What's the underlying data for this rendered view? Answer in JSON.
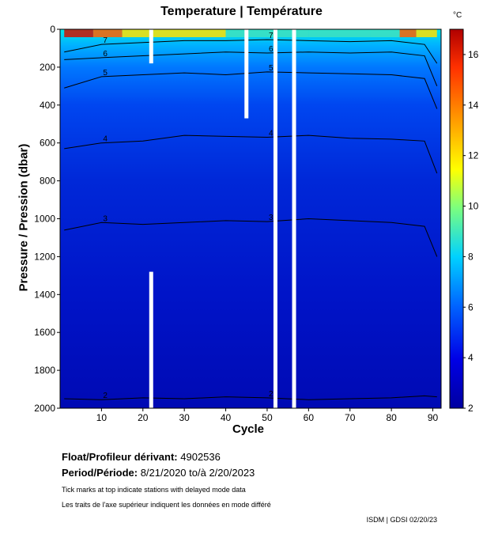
{
  "header": {
    "title": "Temperature | Température",
    "unit": "°C"
  },
  "chart_data": {
    "type": "heatmap",
    "title": "Temperature | Température",
    "xlabel": "Cycle",
    "ylabel": "Pressure / Pression (dbar)",
    "xlim": [
      0,
      92
    ],
    "ylim": [
      2000,
      0
    ],
    "x_ticks": [
      10,
      20,
      30,
      40,
      50,
      60,
      70,
      80,
      90
    ],
    "y_ticks": [
      0,
      200,
      400,
      600,
      800,
      1000,
      1200,
      1400,
      1600,
      1800,
      2000
    ],
    "colorbar": {
      "label": "°C",
      "range": [
        2,
        17
      ],
      "ticks": [
        2,
        4,
        6,
        8,
        10,
        12,
        14,
        16
      ]
    },
    "contours": [
      {
        "level": 2,
        "label": "2",
        "pressure": [
          1950,
          1955,
          1945,
          1950,
          1940,
          1945,
          1955,
          1950,
          1945,
          1935,
          1940
        ],
        "cycles": [
          1,
          10,
          20,
          30,
          40,
          50,
          60,
          70,
          80,
          88,
          91
        ]
      },
      {
        "level": 3,
        "label": "3",
        "pressure": [
          1060,
          1020,
          1030,
          1020,
          1010,
          1015,
          1000,
          1010,
          1020,
          1040,
          1200
        ],
        "cycles": [
          1,
          10,
          20,
          30,
          40,
          50,
          60,
          70,
          80,
          88,
          91
        ]
      },
      {
        "level": 4,
        "label": "4",
        "pressure": [
          630,
          600,
          590,
          560,
          565,
          570,
          560,
          575,
          580,
          590,
          760
        ],
        "cycles": [
          1,
          10,
          20,
          30,
          40,
          50,
          60,
          70,
          80,
          88,
          91
        ]
      },
      {
        "level": 5,
        "label": "5",
        "pressure": [
          310,
          250,
          240,
          230,
          240,
          225,
          230,
          235,
          240,
          260,
          420
        ],
        "cycles": [
          1,
          10,
          20,
          30,
          40,
          50,
          60,
          70,
          80,
          88,
          91
        ]
      },
      {
        "level": 6,
        "label": "6",
        "pressure": [
          160,
          150,
          140,
          130,
          120,
          125,
          120,
          125,
          120,
          140,
          300
        ],
        "cycles": [
          1,
          10,
          20,
          30,
          40,
          50,
          60,
          70,
          80,
          88,
          91
        ]
      },
      {
        "level": 7,
        "label": "7",
        "pressure": [
          120,
          80,
          70,
          60,
          60,
          55,
          60,
          65,
          60,
          80,
          180
        ],
        "cycles": [
          1,
          10,
          20,
          30,
          40,
          50,
          60,
          70,
          80,
          88,
          91
        ]
      }
    ],
    "gaps": [
      {
        "cycle": 22,
        "from_pressure": 0,
        "to_pressure": 180
      },
      {
        "cycle": 22,
        "from_pressure": 1280,
        "to_pressure": 2000
      },
      {
        "cycle": 45,
        "from_pressure": 0,
        "to_pressure": 470
      },
      {
        "cycle": 52,
        "from_pressure": 0,
        "to_pressure": 2000
      },
      {
        "cycle": 56.5,
        "from_pressure": 0,
        "to_pressure": 2000
      }
    ]
  },
  "info": {
    "float_label": "Float/Profileur dérivant:",
    "float_value": "4902536",
    "period_label": "Period/Période:",
    "period_value": "8/21/2020  to/à  2/20/2023",
    "note_en": "Tick marks at top indicate stations with delayed mode data",
    "note_fr": "Les traits de l'axe supérieur indiquent les données en mode différé",
    "footer": "ISDM | GDSI  02/20/23"
  }
}
